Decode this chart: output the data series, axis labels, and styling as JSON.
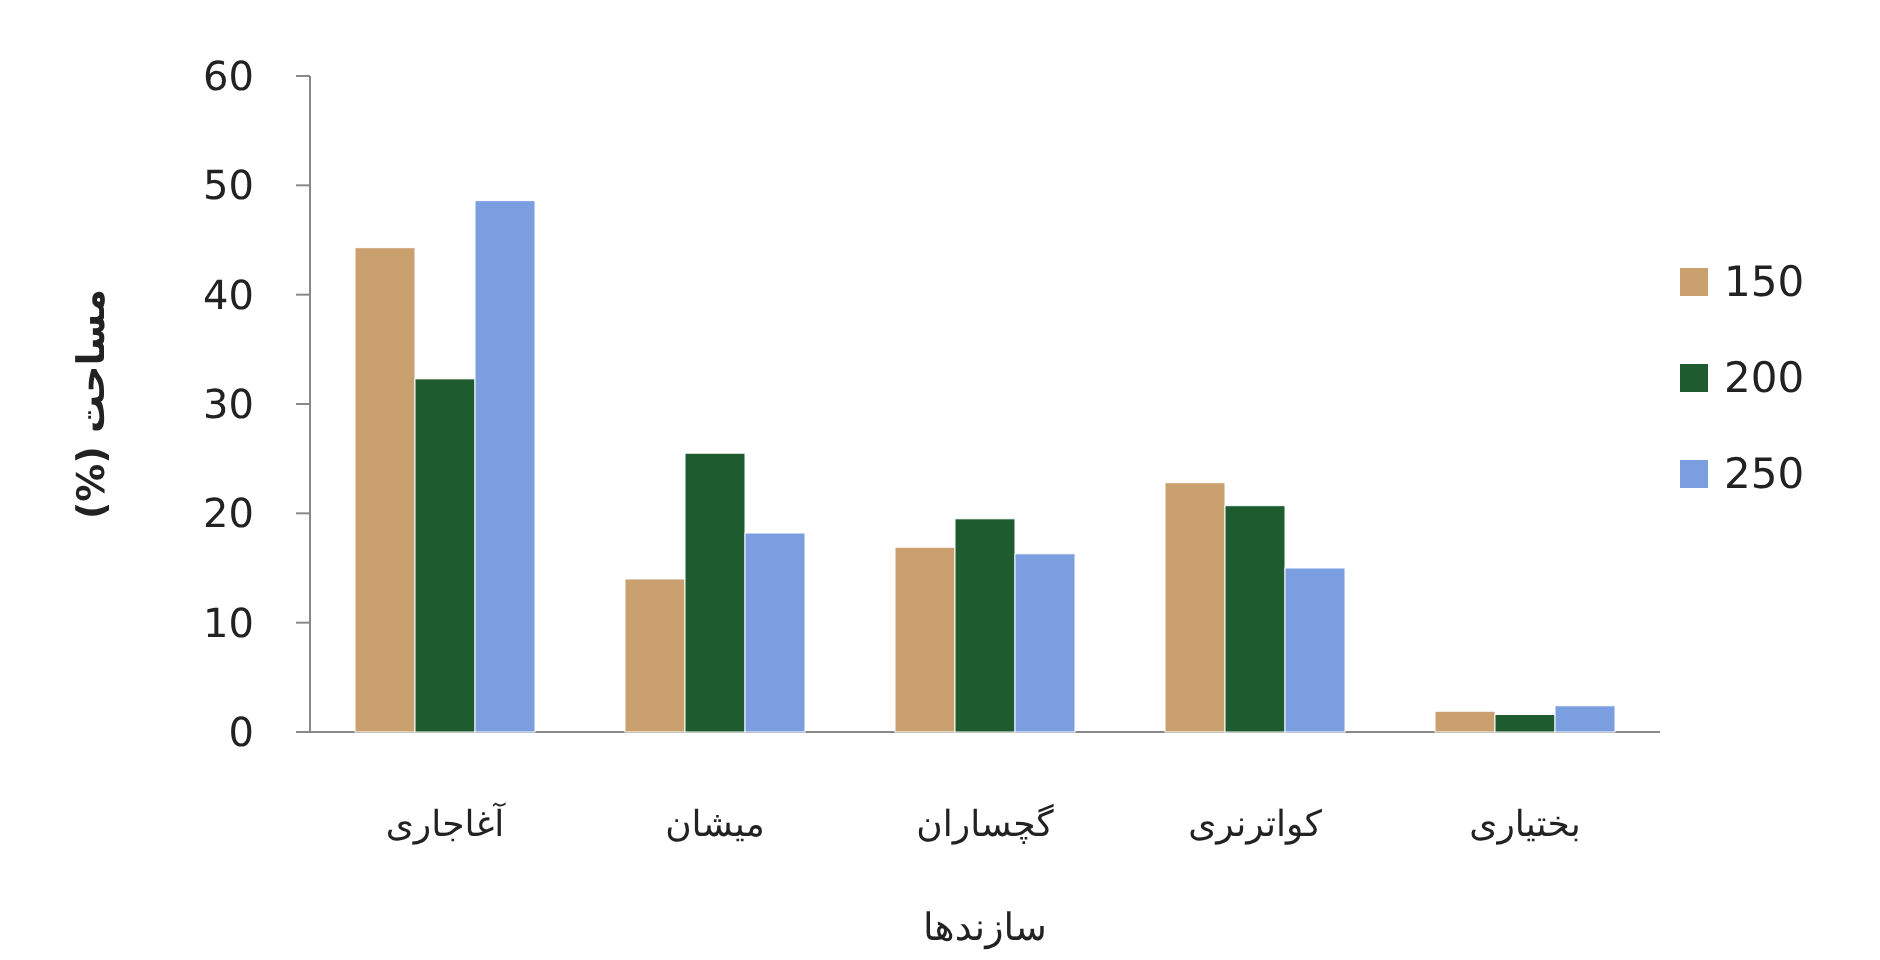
{
  "chart_data": {
    "type": "bar",
    "xlabel": "سازندها",
    "ylabel": "مساحت (%)",
    "categories": [
      "آغاجاری",
      "میشان",
      "گچساران",
      "کواترنری",
      "بختیاری"
    ],
    "series": [
      {
        "name": "150",
        "color": "#c9a06e",
        "values": [
          44.3,
          14.0,
          16.9,
          22.8,
          1.9
        ]
      },
      {
        "name": "200",
        "color": "#1e5c30",
        "values": [
          32.3,
          25.5,
          19.5,
          20.7,
          1.6
        ]
      },
      {
        "name": "250",
        "color": "#7a9ee0",
        "values": [
          48.6,
          18.2,
          16.3,
          15.0,
          2.4
        ]
      }
    ],
    "ylim": [
      0,
      60
    ],
    "yticks": [
      0,
      10,
      20,
      30,
      40,
      50,
      60
    ],
    "legend": "right"
  }
}
